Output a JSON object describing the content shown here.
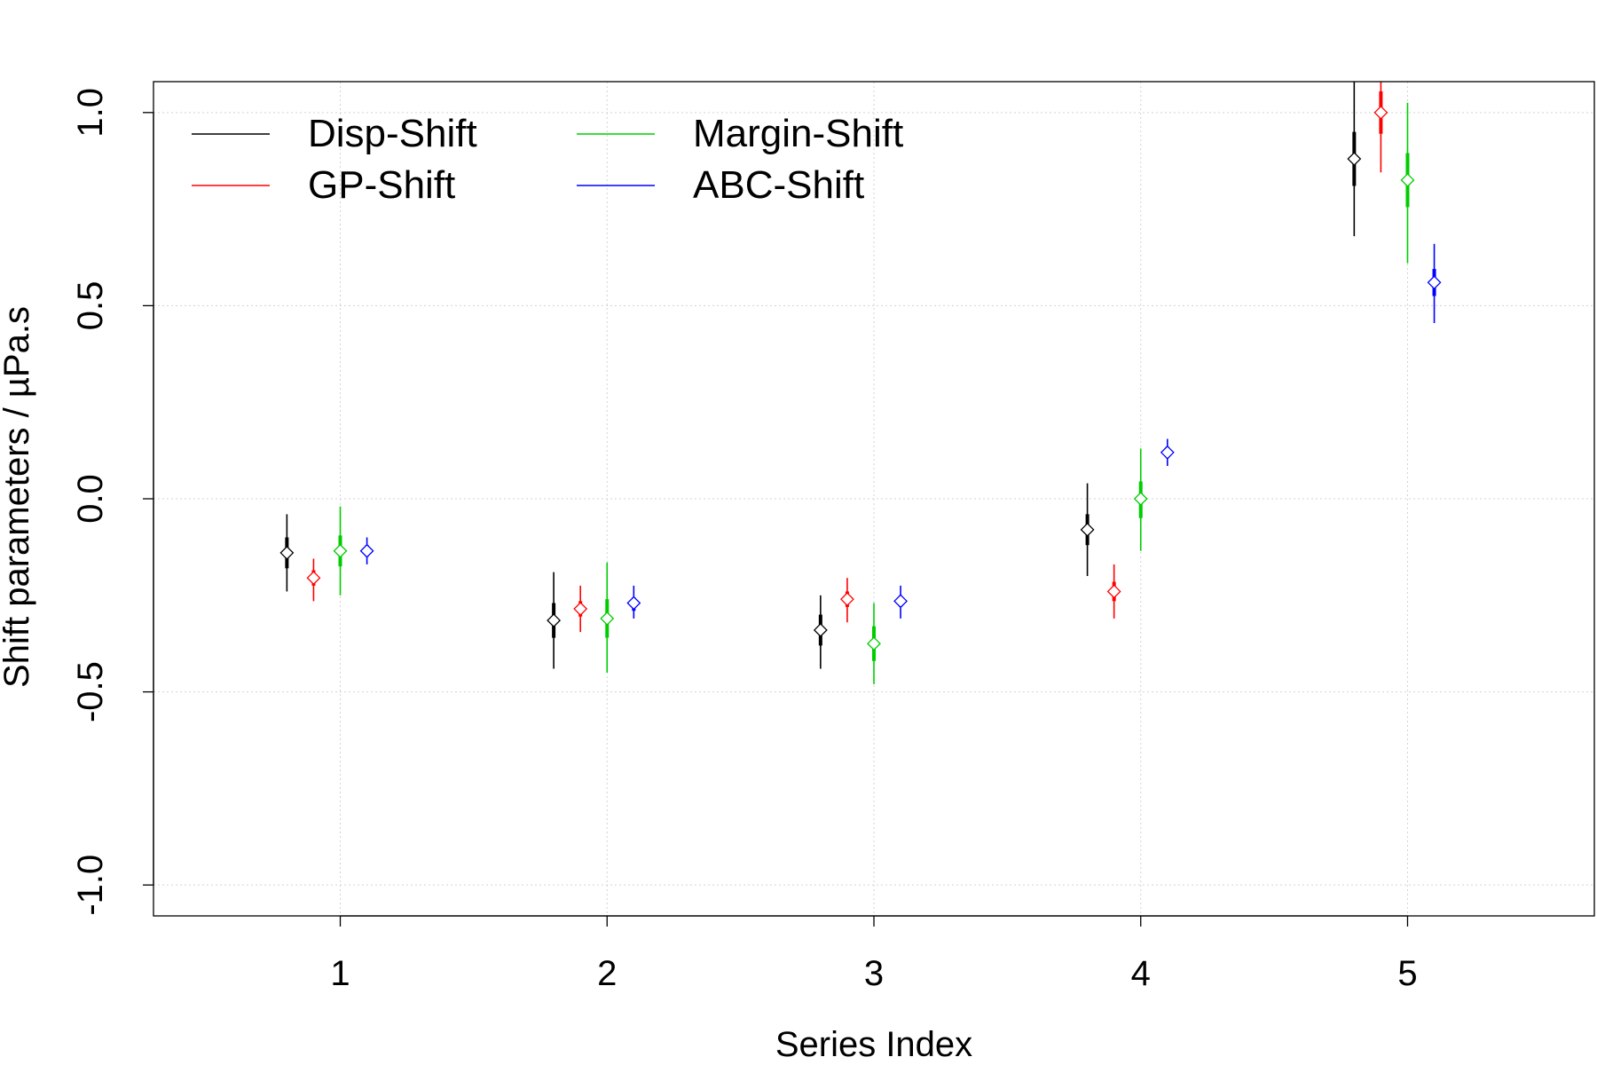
{
  "chart_data": {
    "type": "scatter",
    "xlabel": "Series Index",
    "ylabel": "Shift parameters / µPa.s",
    "xlim": [
      0.3,
      5.7
    ],
    "ylim": [
      -1.08,
      1.08
    ],
    "x_ticks": [
      1,
      2,
      3,
      4,
      5
    ],
    "x_tick_labels": [
      "1",
      "2",
      "3",
      "4",
      "5"
    ],
    "y_ticks": [
      -1.0,
      -0.5,
      0.0,
      0.5,
      1.0
    ],
    "y_tick_labels": [
      "-1.0",
      "-0.5",
      "0.0",
      "0.5",
      "1.0"
    ],
    "grid": true,
    "legend_position": "top-left",
    "series": [
      {
        "name": "Disp-Shift",
        "color": "#000000",
        "x": [
          0.8,
          1.8,
          2.8,
          3.8,
          4.8
        ],
        "values": [
          -0.14,
          -0.315,
          -0.34,
          -0.08,
          0.88
        ],
        "inner": [
          [
            -0.18,
            -0.1
          ],
          [
            -0.36,
            -0.27
          ],
          [
            -0.38,
            -0.3
          ],
          [
            -0.12,
            -0.04
          ],
          [
            0.81,
            0.95
          ]
        ],
        "outer": [
          [
            -0.24,
            -0.04
          ],
          [
            -0.44,
            -0.19
          ],
          [
            -0.44,
            -0.25
          ],
          [
            -0.2,
            0.04
          ],
          [
            0.68,
            1.08
          ]
        ]
      },
      {
        "name": "GP-Shift",
        "color": "#ff0000",
        "x": [
          0.9,
          1.9,
          2.9,
          3.9,
          4.9
        ],
        "values": [
          -0.205,
          -0.285,
          -0.26,
          -0.24,
          1.0
        ],
        "inner": [
          [
            -0.225,
            -0.185
          ],
          [
            -0.305,
            -0.265
          ],
          [
            -0.28,
            -0.24
          ],
          [
            -0.265,
            -0.215
          ],
          [
            0.945,
            1.055
          ]
        ],
        "outer": [
          [
            -0.265,
            -0.155
          ],
          [
            -0.345,
            -0.225
          ],
          [
            -0.32,
            -0.205
          ],
          [
            -0.31,
            -0.17
          ],
          [
            0.845,
            1.08
          ]
        ]
      },
      {
        "name": "Margin-Shift",
        "color": "#00cd00",
        "x": [
          1.0,
          2.0,
          3.0,
          4.0,
          5.0
        ],
        "values": [
          -0.135,
          -0.31,
          -0.375,
          0.0,
          0.825
        ],
        "inner": [
          [
            -0.175,
            -0.095
          ],
          [
            -0.36,
            -0.26
          ],
          [
            -0.42,
            -0.33
          ],
          [
            -0.05,
            0.045
          ],
          [
            0.755,
            0.895
          ]
        ],
        "outer": [
          [
            -0.25,
            -0.02
          ],
          [
            -0.45,
            -0.165
          ],
          [
            -0.48,
            -0.27
          ],
          [
            -0.135,
            0.13
          ],
          [
            0.61,
            1.025
          ]
        ]
      },
      {
        "name": "ABC-Shift",
        "color": "#0000ff",
        "x": [
          1.1,
          2.1,
          3.1,
          4.1,
          5.1
        ],
        "values": [
          -0.135,
          -0.27,
          -0.265,
          0.12,
          0.56
        ],
        "inner": [
          [
            -0.15,
            -0.12
          ],
          [
            -0.29,
            -0.255
          ],
          [
            -0.28,
            -0.25
          ],
          [
            0.105,
            0.135
          ],
          [
            0.525,
            0.595
          ]
        ],
        "outer": [
          [
            -0.17,
            -0.1
          ],
          [
            -0.31,
            -0.225
          ],
          [
            -0.31,
            -0.225
          ],
          [
            0.085,
            0.155
          ],
          [
            0.455,
            0.66
          ]
        ]
      }
    ]
  }
}
